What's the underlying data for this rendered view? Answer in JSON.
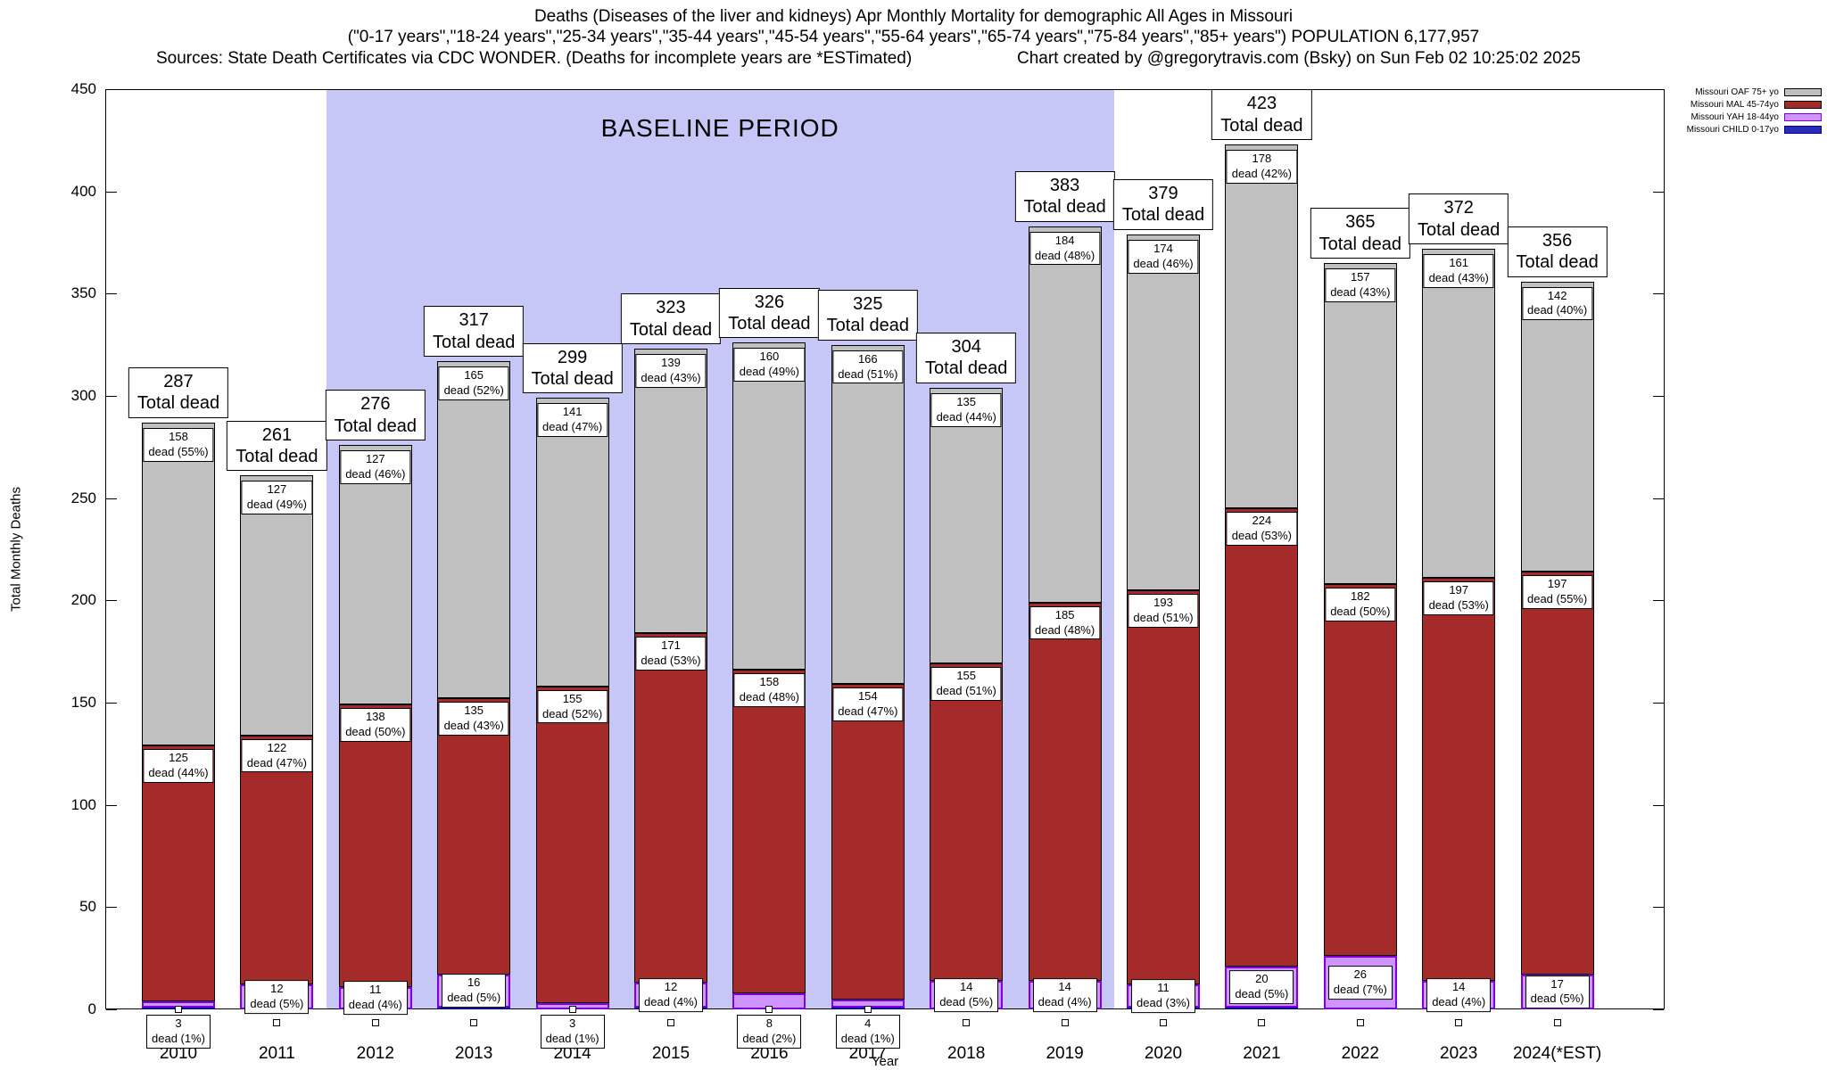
{
  "title": {
    "line1": "Deaths (Diseases of the liver and kidneys) Apr Monthly Mortality for demographic All Ages in Missouri",
    "line2": "(\"0-17 years\",\"18-24 years\",\"25-34 years\",\"35-44 years\",\"45-54 years\",\"55-64 years\",\"65-74 years\",\"75-84 years\",\"85+ years\") POPULATION 6,177,957",
    "sources": "Sources: State Death Certificates via CDC WONDER. (Deaths for incomplete years are *ESTimated)",
    "credit": "Chart created by @gregorytravis.com (Bsky) on Sun Feb 02 10:25:02 2025"
  },
  "chart_data": {
    "type": "bar",
    "stacked": true,
    "title": "Deaths (Diseases of the liver and kidneys) Apr Monthly Mortality for demographic All Ages in Missouri",
    "xlabel": "Year",
    "ylabel": "Total Monthly Deaths",
    "ylim": [
      0,
      450
    ],
    "yticks": [
      0,
      50,
      100,
      150,
      200,
      250,
      300,
      350,
      400,
      450
    ],
    "grid": false,
    "legend_position": "top-right-outside",
    "total_dead_text": "Total dead",
    "baseline": {
      "label": "BASELINE PERIOD",
      "start_index": 2,
      "end_index": 9,
      "start_year": "2012",
      "end_year": "2019",
      "color": "#c7c7f7"
    },
    "series_order": [
      "child",
      "yah",
      "mal",
      "oaf"
    ],
    "series_meta": {
      "oaf": {
        "name": "Missouri OAF 75+ yo",
        "fill": "#c0c0c0",
        "border": "#000000",
        "border_width": 1
      },
      "mal": {
        "name": "Missouri MAL 45-74yo",
        "fill": "#a52a2a",
        "border": "#000000",
        "border_width": 1
      },
      "yah": {
        "name": "Missouri YAH 18-44yo",
        "fill": "#cf94ff",
        "border": "#7d00e0",
        "border_width": 2
      },
      "child": {
        "name": "Missouri CHILD 0-17yo",
        "fill": "#2a2abb",
        "border": "#00008b",
        "border_width": 1
      }
    },
    "legend": [
      {
        "label": "Missouri OAF 75+ yo",
        "fill": "#c0c0c0",
        "border": "#000000"
      },
      {
        "label": "Missouri MAL 45-74yo",
        "fill": "#a52a2a",
        "border": "#000000"
      },
      {
        "label": "Missouri YAH 18-44yo",
        "fill": "#cf94ff",
        "border": "#7d00e0"
      },
      {
        "label": "Missouri CHILD 0-17yo",
        "fill": "#2a2abb",
        "border": "#00008b"
      }
    ],
    "categories": [
      "2010",
      "2011",
      "2012",
      "2013",
      "2014",
      "2015",
      "2016",
      "2017",
      "2018",
      "2019",
      "2020",
      "2021",
      "2022",
      "2023",
      "2024(*EST)"
    ],
    "bars": [
      {
        "year": "2010",
        "total": 287,
        "oaf": {
          "value": 158,
          "label": "dead (55%)"
        },
        "mal": {
          "value": 125,
          "label": "dead (44%)"
        },
        "yah": {
          "value": 3,
          "label": "dead (1%)",
          "below_axis": true
        },
        "child": {
          "value": 1
        }
      },
      {
        "year": "2011",
        "total": 261,
        "oaf": {
          "value": 127,
          "label": "dead (49%)"
        },
        "mal": {
          "value": 122,
          "label": "dead (47%)"
        },
        "yah": {
          "value": 12,
          "label": "dead (5%)"
        },
        "child": {
          "value": 0
        }
      },
      {
        "year": "2012",
        "total": 276,
        "oaf": {
          "value": 127,
          "label": "dead (46%)"
        },
        "mal": {
          "value": 138,
          "label": "dead (50%)"
        },
        "yah": {
          "value": 11,
          "label": "dead (4%)"
        },
        "child": {
          "value": 0
        }
      },
      {
        "year": "2013",
        "total": 317,
        "oaf": {
          "value": 165,
          "label": "dead (52%)"
        },
        "mal": {
          "value": 135,
          "label": "dead (43%)"
        },
        "yah": {
          "value": 16,
          "label": "dead (5%)"
        },
        "child": {
          "value": 1
        }
      },
      {
        "year": "2014",
        "total": 299,
        "oaf": {
          "value": 141,
          "label": "dead (47%)"
        },
        "mal": {
          "value": 155,
          "label": "dead (52%)"
        },
        "yah": {
          "value": 3,
          "label": "dead (1%)",
          "below_axis": true
        },
        "child": {
          "value": 0
        }
      },
      {
        "year": "2015",
        "total": 323,
        "oaf": {
          "value": 139,
          "label": "dead (43%)"
        },
        "mal": {
          "value": 171,
          "label": "dead (53%)"
        },
        "yah": {
          "value": 12,
          "label": "dead (4%)"
        },
        "child": {
          "value": 1
        }
      },
      {
        "year": "2016",
        "total": 326,
        "oaf": {
          "value": 160,
          "label": "dead (49%)"
        },
        "mal": {
          "value": 158,
          "label": "dead (48%)"
        },
        "yah": {
          "value": 8,
          "label": "dead (2%)",
          "below_axis": true
        },
        "child": {
          "value": 0
        }
      },
      {
        "year": "2017",
        "total": 325,
        "oaf": {
          "value": 166,
          "label": "dead (51%)"
        },
        "mal": {
          "value": 154,
          "label": "dead (47%)"
        },
        "yah": {
          "value": 4,
          "label": "dead (1%)",
          "below_axis": true
        },
        "child": {
          "value": 1
        }
      },
      {
        "year": "2018",
        "total": 304,
        "oaf": {
          "value": 135,
          "label": "dead (44%)"
        },
        "mal": {
          "value": 155,
          "label": "dead (51%)"
        },
        "yah": {
          "value": 14,
          "label": "dead (5%)"
        },
        "child": {
          "value": 0
        }
      },
      {
        "year": "2019",
        "total": 383,
        "oaf": {
          "value": 184,
          "label": "dead (48%)"
        },
        "mal": {
          "value": 185,
          "label": "dead (48%)"
        },
        "yah": {
          "value": 14,
          "label": "dead (4%)"
        },
        "child": {
          "value": 0
        }
      },
      {
        "year": "2020",
        "total": 379,
        "oaf": {
          "value": 174,
          "label": "dead (46%)"
        },
        "mal": {
          "value": 193,
          "label": "dead (51%)"
        },
        "yah": {
          "value": 11,
          "label": "dead (3%)"
        },
        "child": {
          "value": 1
        }
      },
      {
        "year": "2021",
        "total": 423,
        "oaf": {
          "value": 178,
          "label": "dead (42%)"
        },
        "mal": {
          "value": 224,
          "label": "dead (53%)"
        },
        "yah": {
          "value": 20,
          "label": "dead (5%)"
        },
        "child": {
          "value": 1
        }
      },
      {
        "year": "2022",
        "total": 365,
        "oaf": {
          "value": 157,
          "label": "dead (43%)"
        },
        "mal": {
          "value": 182,
          "label": "dead (50%)"
        },
        "yah": {
          "value": 26,
          "label": "dead (7%)"
        },
        "child": {
          "value": 0
        }
      },
      {
        "year": "2023",
        "total": 372,
        "oaf": {
          "value": 161,
          "label": "dead (43%)"
        },
        "mal": {
          "value": 197,
          "label": "dead (53%)"
        },
        "yah": {
          "value": 14,
          "label": "dead (4%)"
        },
        "child": {
          "value": 0
        }
      },
      {
        "year": "2024(*EST)",
        "total": 356,
        "oaf": {
          "value": 142,
          "label": "dead (40%)"
        },
        "mal": {
          "value": 197,
          "label": "dead (55%)"
        },
        "yah": {
          "value": 17,
          "label": "dead (5%)"
        },
        "child": {
          "value": 0
        }
      }
    ]
  }
}
